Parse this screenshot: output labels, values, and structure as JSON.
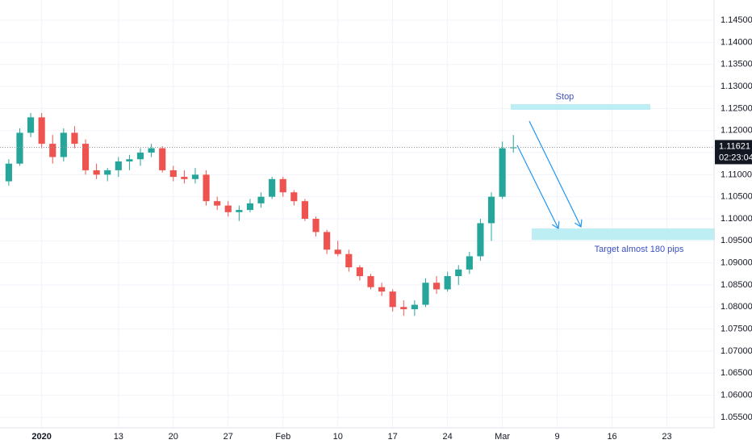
{
  "chart_data": {
    "type": "candlestick",
    "x": [
      0.8,
      1.8,
      2.8,
      3.8,
      4.8,
      5.8,
      6.8,
      7.8,
      8.8,
      9.8,
      10.8,
      11.8,
      12.8,
      13.8,
      14.8,
      15.8,
      16.8,
      17.8,
      18.8,
      19.8,
      20.8,
      21.8,
      22.8,
      23.8,
      24.8,
      25.8,
      26.8,
      27.8,
      28.8,
      29.8,
      30.8,
      31.8,
      32.8,
      33.8,
      34.8,
      35.8,
      36.8,
      37.8,
      38.8,
      39.8,
      40.8,
      41.8,
      42.8,
      43.8,
      44.8,
      45.8,
      46.8
    ],
    "open": [
      1.1085,
      1.1125,
      1.1195,
      1.123,
      1.117,
      1.114,
      1.1195,
      1.117,
      1.111,
      1.11,
      1.111,
      1.113,
      1.1135,
      1.115,
      1.116,
      1.111,
      1.1095,
      1.109,
      1.11,
      1.104,
      1.103,
      1.1015,
      1.102,
      1.1035,
      1.105,
      1.109,
      1.106,
      1.104,
      1.1,
      1.097,
      1.093,
      1.092,
      1.089,
      1.087,
      1.0845,
      1.0835,
      1.08,
      1.0795,
      1.0805,
      1.0855,
      1.084,
      1.087,
      1.0885,
      1.0915,
      1.099,
      1.105,
      1.116
    ],
    "high": [
      1.1135,
      1.1205,
      1.124,
      1.124,
      1.119,
      1.1205,
      1.121,
      1.118,
      1.1125,
      1.1115,
      1.114,
      1.1145,
      1.116,
      1.117,
      1.1165,
      1.112,
      1.111,
      1.1115,
      1.111,
      1.105,
      1.104,
      1.103,
      1.1045,
      1.106,
      1.1095,
      1.1095,
      1.1065,
      1.1045,
      1.1005,
      1.0975,
      1.095,
      1.093,
      1.0895,
      1.0875,
      1.0855,
      1.084,
      1.0815,
      1.0815,
      1.0865,
      1.087,
      1.088,
      1.0895,
      1.0925,
      1.1,
      1.106,
      1.1175,
      1.119
    ],
    "low": [
      1.1075,
      1.112,
      1.1185,
      1.116,
      1.1125,
      1.113,
      1.116,
      1.11,
      1.109,
      1.1085,
      1.1095,
      1.111,
      1.112,
      1.114,
      1.1105,
      1.1085,
      1.108,
      1.108,
      1.103,
      1.102,
      1.1005,
      1.0995,
      1.1015,
      1.1025,
      1.1045,
      1.105,
      1.103,
      1.0995,
      1.096,
      1.092,
      1.0915,
      1.088,
      1.086,
      1.084,
      1.0825,
      1.079,
      1.078,
      1.078,
      1.08,
      1.083,
      1.0835,
      1.085,
      1.0875,
      1.0905,
      1.095,
      1.1045,
      1.115
    ],
    "close": [
      1.1125,
      1.1195,
      1.123,
      1.117,
      1.114,
      1.1195,
      1.117,
      1.111,
      1.11,
      1.111,
      1.113,
      1.1135,
      1.115,
      1.116,
      1.111,
      1.1095,
      1.109,
      1.11,
      1.104,
      1.103,
      1.1015,
      1.102,
      1.1035,
      1.105,
      1.109,
      1.106,
      1.104,
      1.1,
      1.097,
      1.093,
      1.092,
      1.089,
      1.087,
      1.0845,
      1.0835,
      1.08,
      1.0795,
      1.0805,
      1.0855,
      1.084,
      1.087,
      1.0885,
      1.0915,
      1.099,
      1.105,
      1.116,
      1.1162
    ],
    "up_color": "#26a69a",
    "down_color": "#ef5350",
    "xlim": [
      0,
      65.1
    ],
    "xticks": [
      {
        "value": 3.8,
        "label": "2020"
      },
      {
        "value": 10.8,
        "label": "13"
      },
      {
        "value": 15.8,
        "label": "20"
      },
      {
        "value": 20.8,
        "label": "27"
      },
      {
        "value": 25.8,
        "label": "Feb"
      },
      {
        "value": 30.8,
        "label": "10"
      },
      {
        "value": 35.8,
        "label": "17"
      },
      {
        "value": 40.8,
        "label": "24"
      },
      {
        "value": 45.8,
        "label": "Mar"
      },
      {
        "value": 50.8,
        "label": "9"
      },
      {
        "value": 55.8,
        "label": "16"
      },
      {
        "value": 60.8,
        "label": "23"
      }
    ],
    "ylim": [
      1.0526,
      1.1496
    ],
    "yticks": [
      {
        "value": 1.055,
        "label": "1.05500"
      },
      {
        "value": 1.06,
        "label": "1.06000"
      },
      {
        "value": 1.065,
        "label": "1.06500"
      },
      {
        "value": 1.07,
        "label": "1.07000"
      },
      {
        "value": 1.075,
        "label": "1.07500"
      },
      {
        "value": 1.08,
        "label": "1.08000"
      },
      {
        "value": 1.085,
        "label": "1.08500"
      },
      {
        "value": 1.09,
        "label": "1.09000"
      },
      {
        "value": 1.095,
        "label": "1.09500"
      },
      {
        "value": 1.1,
        "label": "1.10000"
      },
      {
        "value": 1.105,
        "label": "1.10500"
      },
      {
        "value": 1.11,
        "label": "1.11000"
      },
      {
        "value": 1.115,
        "label": "1.11500"
      },
      {
        "value": 1.12,
        "label": "1.12000"
      },
      {
        "value": 1.125,
        "label": "1.12500"
      },
      {
        "value": 1.13,
        "label": "1.13000"
      },
      {
        "value": 1.135,
        "label": "1.13500"
      },
      {
        "value": 1.14,
        "label": "1.14000"
      },
      {
        "value": 1.145,
        "label": "1.14500"
      }
    ],
    "grid": true,
    "last_price": 1.11621,
    "countdown": "02:23:04",
    "annotations": [
      {
        "text": "Stop",
        "range": [
          1.1247,
          1.126
        ]
      },
      {
        "text": "Target almost 180 pips",
        "range": [
          1.0952,
          1.0978
        ]
      }
    ]
  }
}
